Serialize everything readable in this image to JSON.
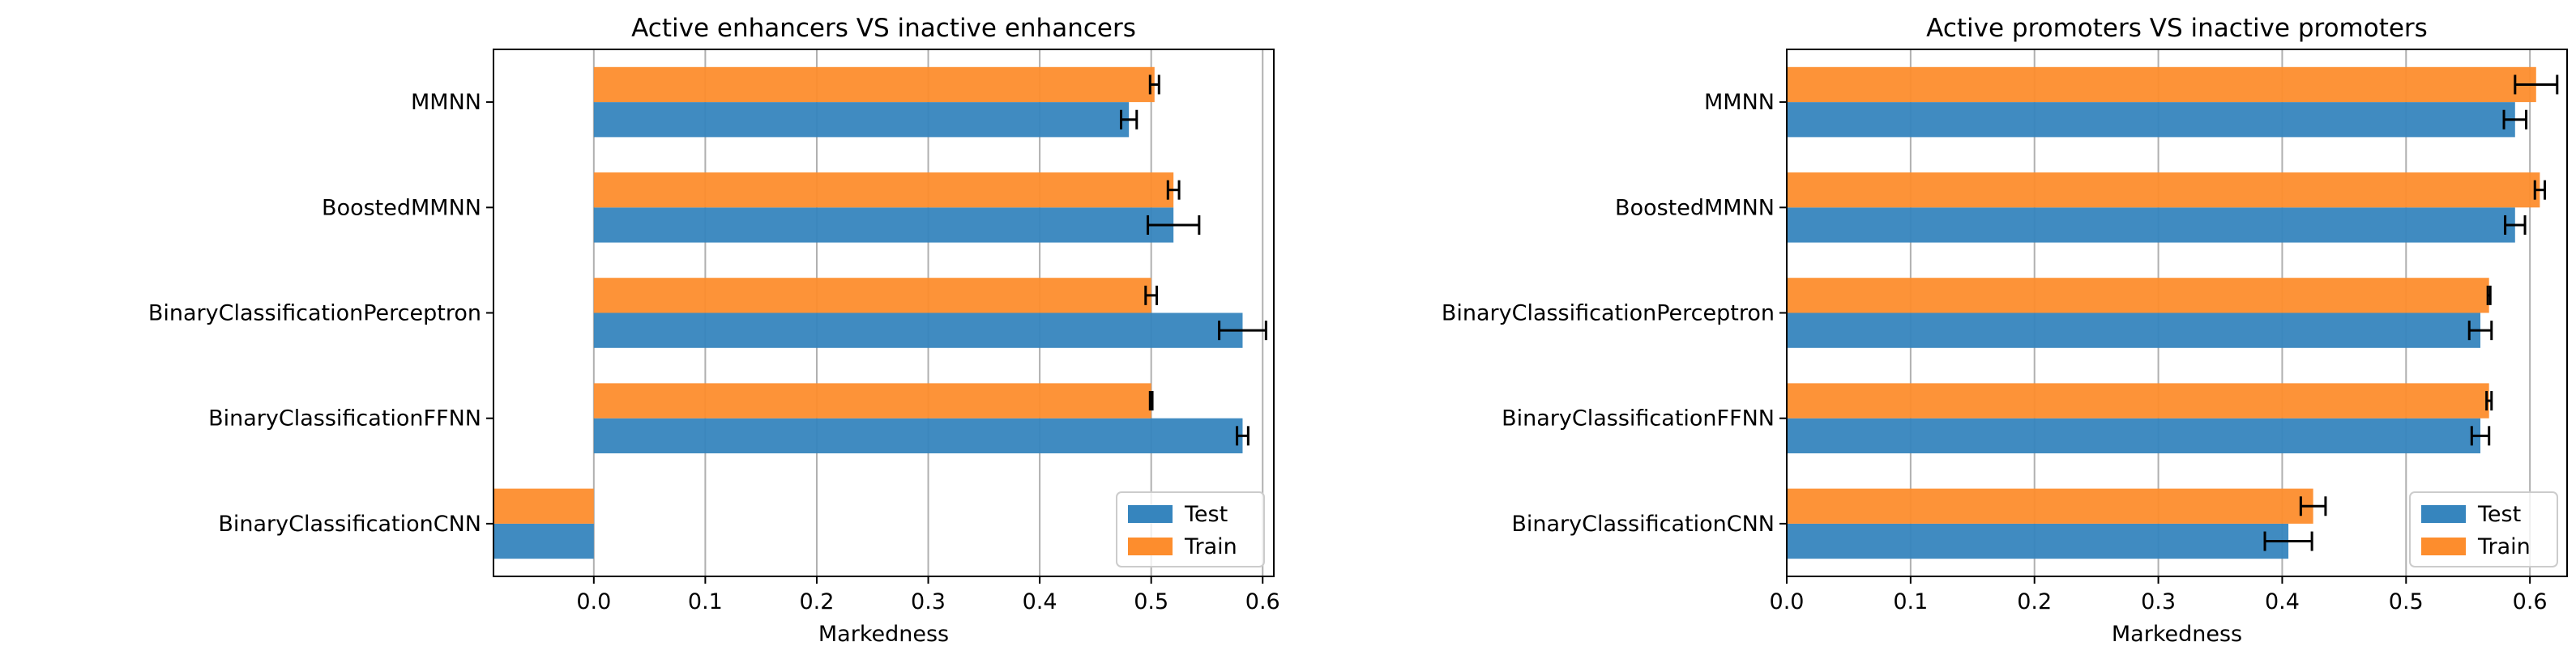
{
  "chart_data": [
    {
      "type": "bar",
      "orientation": "horizontal",
      "title": "Active enhancers VS inactive enhancers",
      "xlabel": "Markedness",
      "ylabel": "",
      "categories": [
        "MMNN",
        "BoostedMMNN",
        "BinaryClassificationPerceptron",
        "BinaryClassificationFFNN",
        "BinaryClassificationCNN"
      ],
      "xlim": [
        -0.09,
        0.61
      ],
      "xticks": [
        0.0,
        0.1,
        0.2,
        0.3,
        0.4,
        0.5,
        0.6
      ],
      "xtick_labels": [
        "0.0",
        "0.1",
        "0.2",
        "0.3",
        "0.4",
        "0.5",
        "0.6"
      ],
      "grid": "vertical",
      "legend_position": "lower-right",
      "series": [
        {
          "name": "Test",
          "color": "#3685be",
          "values": [
            0.48,
            0.52,
            0.582,
            0.582,
            -0.09
          ],
          "errors": [
            0.007,
            0.023,
            0.021,
            0.005,
            0
          ]
        },
        {
          "name": "Train",
          "color": "#fd8d2d",
          "values": [
            0.503,
            0.52,
            0.5,
            0.5,
            -0.09
          ],
          "errors": [
            0.004,
            0.005,
            0.005,
            0.001,
            0
          ]
        }
      ]
    },
    {
      "type": "bar",
      "orientation": "horizontal",
      "title": "Active promoters VS inactive promoters",
      "xlabel": "Markedness",
      "ylabel": "",
      "categories": [
        "MMNN",
        "BoostedMMNN",
        "BinaryClassificationPerceptron",
        "BinaryClassificationFFNN",
        "BinaryClassificationCNN"
      ],
      "xlim": [
        0.0,
        0.63
      ],
      "xticks": [
        0.0,
        0.1,
        0.2,
        0.3,
        0.4,
        0.5,
        0.6
      ],
      "xtick_labels": [
        "0.0",
        "0.1",
        "0.2",
        "0.3",
        "0.4",
        "0.5",
        "0.6"
      ],
      "grid": "vertical",
      "legend_position": "lower-right",
      "series": [
        {
          "name": "Test",
          "color": "#3685be",
          "values": [
            0.588,
            0.588,
            0.56,
            0.56,
            0.405
          ],
          "errors": [
            0.009,
            0.008,
            0.009,
            0.007,
            0.019
          ]
        },
        {
          "name": "Train",
          "color": "#fd8d2d",
          "values": [
            0.605,
            0.608,
            0.567,
            0.567,
            0.425
          ],
          "errors": [
            0.017,
            0.004,
            0.001,
            0.002,
            0.01
          ]
        }
      ]
    }
  ]
}
